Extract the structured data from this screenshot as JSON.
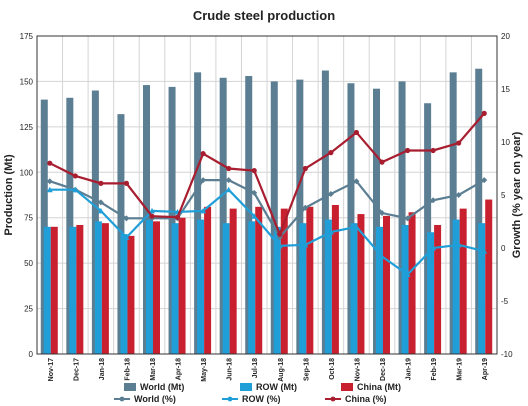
{
  "chart_data": {
    "type": "bar",
    "title": "Crude steel production",
    "ylabel": "Production (Mt)",
    "y2label": "Growth (% year on year)",
    "ylim": [
      0,
      175
    ],
    "y2lim": [
      -10,
      20
    ],
    "yticks": [
      0,
      25,
      50,
      75,
      100,
      125,
      150,
      175
    ],
    "y2ticks": [
      -10,
      -5,
      0,
      5,
      10,
      15,
      20
    ],
    "grid": true,
    "legend_position": "bottom",
    "categories": [
      "Nov-17",
      "Dec-17",
      "Jan-18",
      "Feb-18",
      "Mar-18",
      "Apr-18",
      "May-18",
      "Jun-18",
      "Jul-18",
      "Aug-18",
      "Sep-18",
      "Oct-18",
      "Nov-18",
      "Dec-18",
      "Jan-19",
      "Feb-19",
      "Mar-19",
      "Apr-19"
    ],
    "bar_series": [
      {
        "name": "World (Mt)",
        "color": "#5b7e92",
        "values": [
          140,
          141,
          145,
          132,
          148,
          147,
          155,
          152,
          153,
          150,
          151,
          156,
          149,
          146,
          150,
          138,
          155,
          157
        ]
      },
      {
        "name": "ROW (Mt)",
        "color": "#1f9ed8",
        "values": [
          70,
          70,
          73,
          66,
          74,
          72,
          74,
          72,
          73,
          70,
          72,
          74,
          72,
          70,
          71,
          67,
          74,
          72
        ]
      },
      {
        "name": "China (Mt)",
        "color": "#c8202f",
        "values": [
          70,
          71,
          72,
          65,
          73,
          75,
          81,
          80,
          81,
          80,
          81,
          82,
          77,
          76,
          78,
          71,
          80,
          85
        ]
      }
    ],
    "line_series": [
      {
        "name": "World (%)",
        "color": "#5b7e92",
        "values": [
          6.3,
          5.5,
          4.3,
          2.8,
          2.8,
          2.8,
          6.4,
          6.4,
          5.2,
          1.0,
          3.8,
          5.1,
          6.3,
          3.3,
          2.8,
          4.5,
          5.0,
          6.4
        ]
      },
      {
        "name": "ROW (%)",
        "color": "#1f9ed8",
        "values": [
          5.5,
          5.5,
          3.5,
          1.0,
          3.5,
          3.4,
          3.5,
          5.5,
          3.0,
          0.2,
          0.3,
          1.5,
          2.0,
          -0.8,
          -2.5,
          0.0,
          0.3,
          -0.3
        ]
      },
      {
        "name": "China (%)",
        "color": "#a81d2f",
        "values": [
          8.0,
          6.8,
          6.1,
          6.1,
          3.0,
          2.9,
          8.9,
          7.5,
          7.3,
          1.3,
          7.5,
          9.0,
          10.9,
          8.1,
          9.2,
          9.2,
          9.9,
          12.7
        ]
      }
    ]
  }
}
